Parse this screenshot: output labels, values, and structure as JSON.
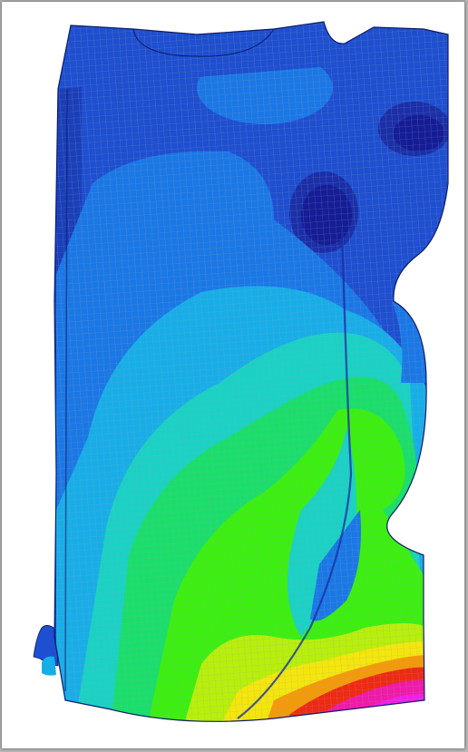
{
  "figure": {
    "subject": "",
    "background_color": "#ffffff",
    "frame_color": "#b9b9b9",
    "mesh_line_color": "#9aa0b4",
    "contour_palette": [
      "#1a2fa8",
      "#1e4fd0",
      "#1a78e6",
      "#17aee8",
      "#19d2c4",
      "#19df6a",
      "#3bf00e",
      "#b8ef0a",
      "#f4e60a",
      "#f49a08",
      "#ee2a12",
      "#f01aa8",
      "#f21de6"
    ]
  }
}
